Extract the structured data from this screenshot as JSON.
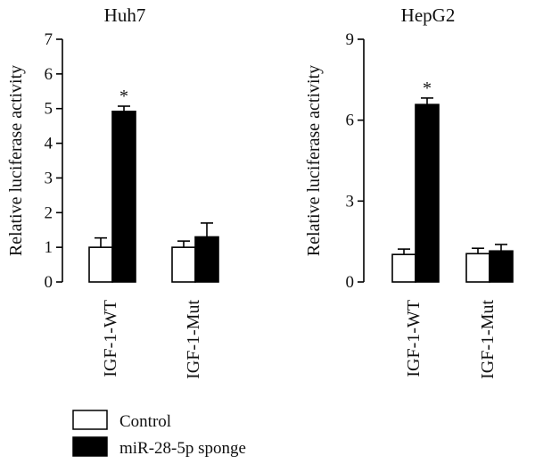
{
  "legend": [
    {
      "label": "Control",
      "fill": "#ffffff"
    },
    {
      "label": "miR-28-5p sponge",
      "fill": "#000000"
    }
  ],
  "chart_data": [
    {
      "type": "bar",
      "title": "Huh7",
      "ylabel": "Relative luciferase activity",
      "ylim": [
        0,
        7
      ],
      "yticks": [
        "0",
        "1",
        "2",
        "3",
        "4",
        "5",
        "6",
        "7"
      ],
      "categories": [
        "IGF-1-WT",
        "IGF-1-Mut"
      ],
      "series": [
        {
          "name": "Control",
          "values": [
            1.0,
            1.0
          ],
          "errors": [
            0.27,
            0.18
          ],
          "color": "#ffffff"
        },
        {
          "name": "miR-28-5p sponge",
          "values": [
            4.92,
            1.3
          ],
          "errors": [
            0.15,
            0.4
          ],
          "color": "#000000"
        }
      ],
      "significance": [
        {
          "category": "IGF-1-WT",
          "series": "miR-28-5p sponge",
          "mark": "*"
        }
      ]
    },
    {
      "type": "bar",
      "title": "HepG2",
      "ylabel": "Relative luciferase activity",
      "ylim": [
        0,
        9
      ],
      "yticks": [
        "0",
        "3",
        "6",
        "9"
      ],
      "categories": [
        "IGF-1-WT",
        "IGF-1-Mut"
      ],
      "series": [
        {
          "name": "Control",
          "values": [
            1.02,
            1.05
          ],
          "errors": [
            0.2,
            0.2
          ],
          "color": "#ffffff"
        },
        {
          "name": "miR-28-5p sponge",
          "values": [
            6.58,
            1.15
          ],
          "errors": [
            0.24,
            0.24
          ],
          "color": "#000000"
        }
      ],
      "significance": [
        {
          "category": "IGF-1-WT",
          "series": "miR-28-5p sponge",
          "mark": "*"
        }
      ]
    }
  ]
}
